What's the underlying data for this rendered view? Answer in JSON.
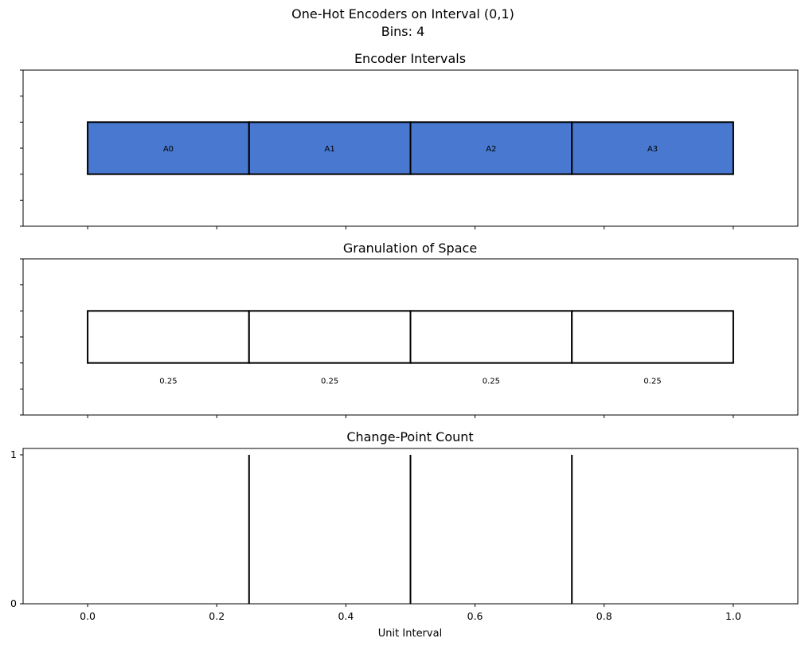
{
  "figure": {
    "title_line1": "One-Hot Encoders on Interval (0,1)",
    "title_line2": "Bins: 4"
  },
  "chart_data": [
    {
      "type": "bar",
      "title": "Encoder Intervals",
      "orientation": "horizontal-stacked",
      "xlim": [
        -0.1,
        1.1
      ],
      "ylim": [
        0,
        3
      ],
      "bar_y_range": [
        1,
        2
      ],
      "segments": [
        {
          "label": "A0",
          "start": 0.0,
          "end": 0.25
        },
        {
          "label": "A1",
          "start": 0.25,
          "end": 0.5
        },
        {
          "label": "A2",
          "start": 0.5,
          "end": 0.75
        },
        {
          "label": "A3",
          "start": 0.75,
          "end": 1.0
        }
      ],
      "fill_color": "#4878cf",
      "edge_color": "#000000",
      "y_tick_labels_visible": false
    },
    {
      "type": "bar",
      "title": "Granulation of Space",
      "orientation": "horizontal-stacked",
      "xlim": [
        -0.1,
        1.1
      ],
      "ylim": [
        0,
        3
      ],
      "bar_y_range": [
        1,
        2
      ],
      "segments": [
        {
          "label": "0.25",
          "start": 0.0,
          "end": 0.25
        },
        {
          "label": "0.25",
          "start": 0.25,
          "end": 0.5
        },
        {
          "label": "0.25",
          "start": 0.5,
          "end": 0.75
        },
        {
          "label": "0.25",
          "start": 0.75,
          "end": 1.0
        }
      ],
      "fill_color": "#ffffff",
      "edge_color": "#000000",
      "y_tick_labels_visible": false
    },
    {
      "type": "bar",
      "title": "Change-Point Count",
      "xlabel": "Unit Interval",
      "xlim": [
        -0.1,
        1.1
      ],
      "ylim": [
        0,
        1
      ],
      "yticks": [
        "0",
        "1"
      ],
      "xticks": [
        "0.0",
        "0.2",
        "0.4",
        "0.6",
        "0.8",
        "1.0"
      ],
      "xtick_values": [
        0.0,
        0.2,
        0.4,
        0.6,
        0.8,
        1.0
      ],
      "change_points": [
        {
          "x": 0.25,
          "count": 1
        },
        {
          "x": 0.5,
          "count": 1
        },
        {
          "x": 0.75,
          "count": 1
        }
      ],
      "line_color": "#000000"
    }
  ]
}
